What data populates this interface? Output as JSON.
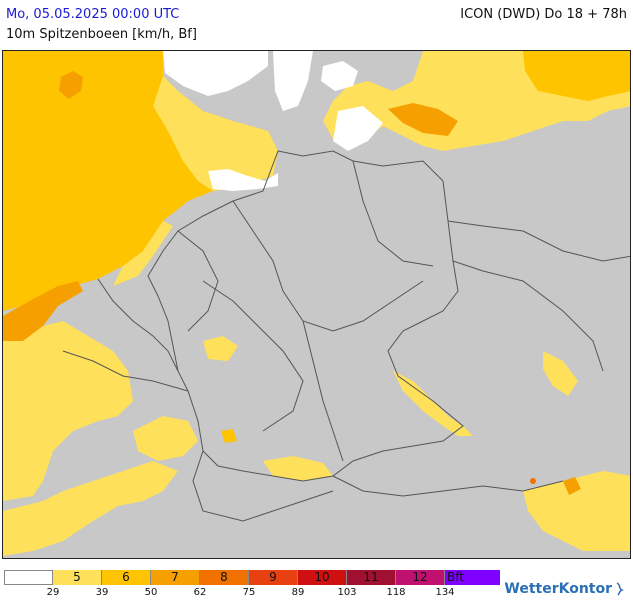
{
  "header": {
    "datetime": "Mo, 05.05.2025 00:00 UTC",
    "parameter": "10m Spitzenboeen [km/h, Bf]",
    "model_run": "ICON (DWD) Do 18 + 78h"
  },
  "colors": {
    "land_no_data": "#c8c8c8",
    "border_line": "#555555",
    "bf_below5": "#ffffff",
    "bf5": "#ffe05a",
    "bf6": "#ffc400",
    "bf7": "#f5a000",
    "bf8": "#f07000",
    "bf9": "#e84010",
    "bf10": "#d01010",
    "bf11": "#a01030",
    "bf12": "#c01070",
    "bf_over": "#8000ff",
    "title_blue": "#1a1ad6"
  },
  "legend": {
    "labels": [
      "",
      "5",
      "6",
      "7",
      "8",
      "9",
      "10",
      "11",
      "12",
      "Bft"
    ],
    "thresholds_kmh": [
      "29",
      "39",
      "50",
      "62",
      "75",
      "89",
      "103",
      "118",
      "134"
    ]
  },
  "brand": {
    "name": "WetterKontor",
    "icon": "wetterkontor-logo-icon"
  }
}
